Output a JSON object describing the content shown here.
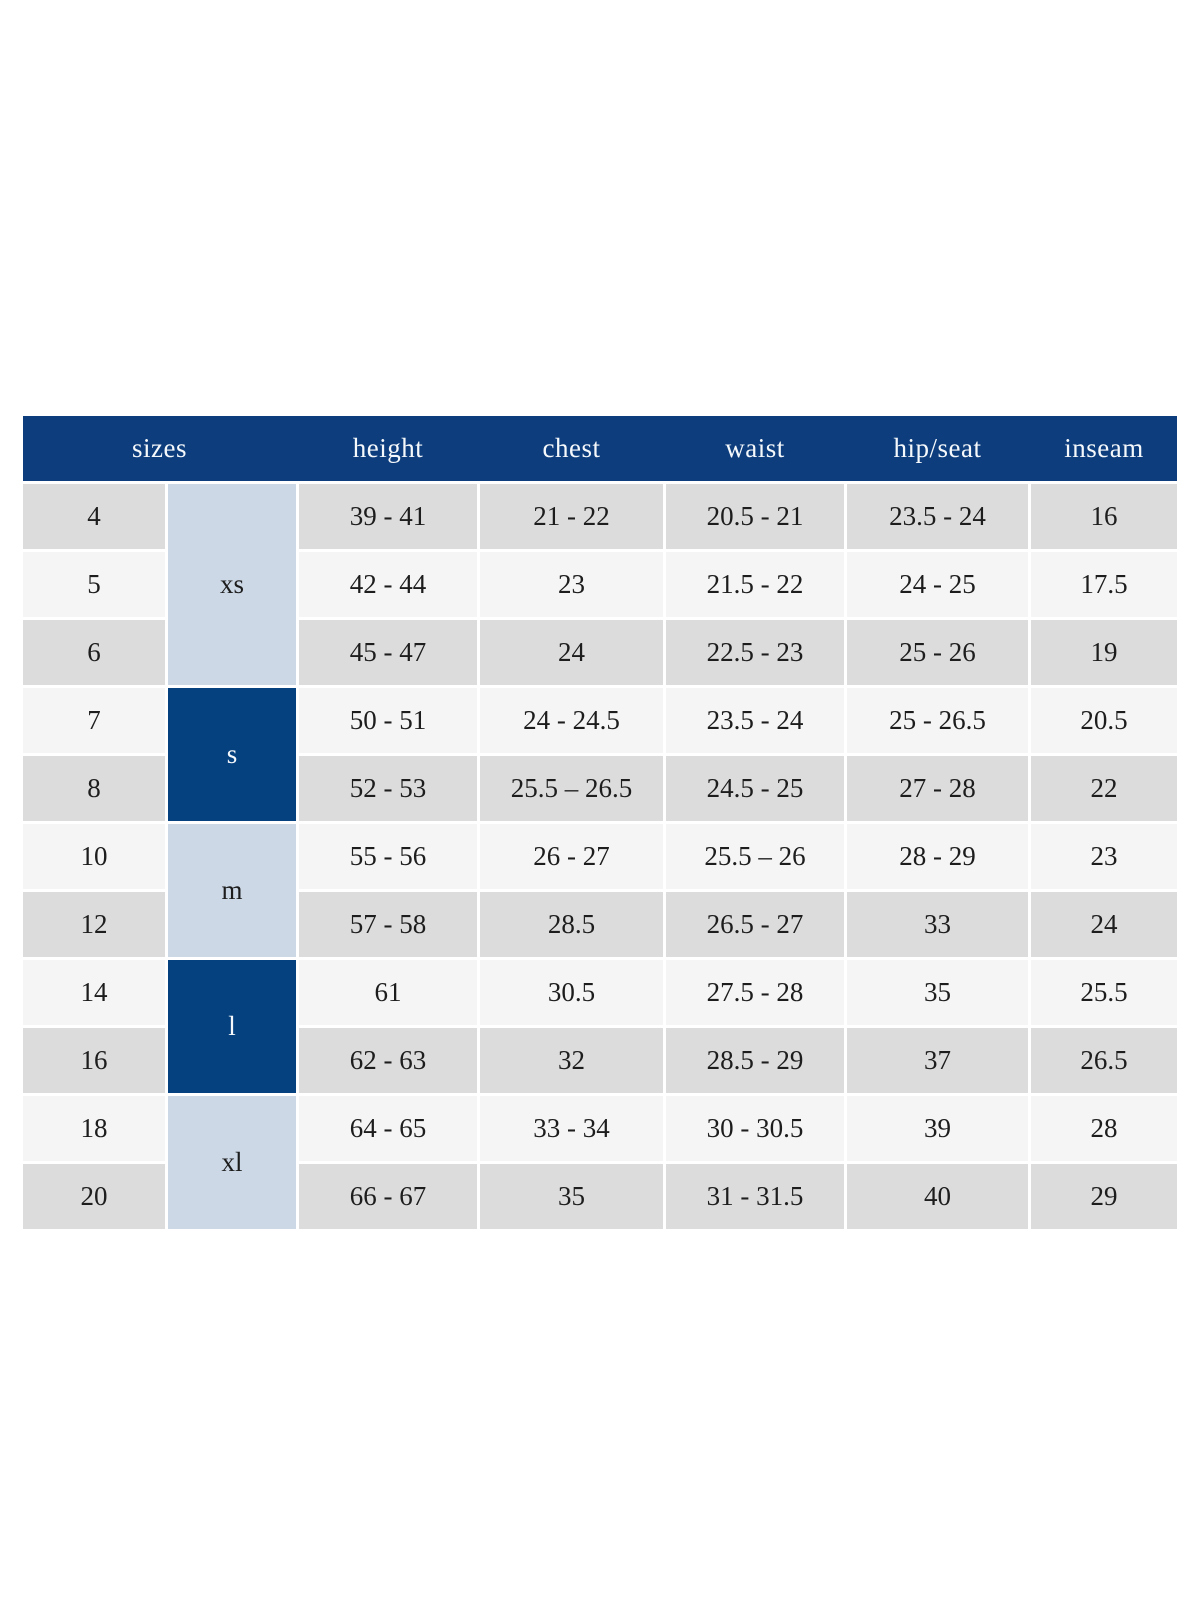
{
  "colors": {
    "header_bg": "#0d3d7c",
    "header_text": "#f6f9fc",
    "group_dark_bg": "#05407f",
    "group_light_bg": "#ccd8e6",
    "row_gray_bg": "#dcdcdc",
    "row_light_bg": "#f5f5f5",
    "cell_text": "#1d1d1d",
    "page_bg": "#ffffff"
  },
  "chart_data": {
    "type": "table",
    "columns": [
      "sizes",
      "height",
      "chest",
      "waist",
      "hip/seat",
      "inseam"
    ],
    "size_groups": [
      {
        "label": "xs",
        "rows": 3,
        "style": "light"
      },
      {
        "label": "s",
        "rows": 2,
        "style": "dark"
      },
      {
        "label": "m",
        "rows": 2,
        "style": "light"
      },
      {
        "label": "l",
        "rows": 2,
        "style": "dark"
      },
      {
        "label": "xl",
        "rows": 2,
        "style": "light"
      }
    ],
    "rows": [
      {
        "size": "4",
        "height": "39 - 41",
        "chest": "21 - 22",
        "waist": "20.5 - 21",
        "hip_seat": "23.5 - 24",
        "inseam": "16"
      },
      {
        "size": "5",
        "height": "42 - 44",
        "chest": "23",
        "waist": "21.5 - 22",
        "hip_seat": "24 - 25",
        "inseam": "17.5"
      },
      {
        "size": "6",
        "height": "45 - 47",
        "chest": "24",
        "waist": "22.5 - 23",
        "hip_seat": "25 - 26",
        "inseam": "19"
      },
      {
        "size": "7",
        "height": "50 - 51",
        "chest": "24 - 24.5",
        "waist": "23.5 - 24",
        "hip_seat": "25 - 26.5",
        "inseam": "20.5"
      },
      {
        "size": "8",
        "height": "52 - 53",
        "chest": "25.5 – 26.5",
        "waist": "24.5 - 25",
        "hip_seat": "27 - 28",
        "inseam": "22"
      },
      {
        "size": "10",
        "height": "55 - 56",
        "chest": "26 - 27",
        "waist": "25.5 – 26",
        "hip_seat": "28 - 29",
        "inseam": "23"
      },
      {
        "size": "12",
        "height": "57 - 58",
        "chest": "28.5",
        "waist": "26.5 - 27",
        "hip_seat": "33",
        "inseam": "24"
      },
      {
        "size": "14",
        "height": "61",
        "chest": "30.5",
        "waist": "27.5 - 28",
        "hip_seat": "35",
        "inseam": "25.5"
      },
      {
        "size": "16",
        "height": "62 - 63",
        "chest": "32",
        "waist": "28.5 - 29",
        "hip_seat": "37",
        "inseam": "26.5"
      },
      {
        "size": "18",
        "height": "64 - 65",
        "chest": "33 - 34",
        "waist": "30 - 30.5",
        "hip_seat": "39",
        "inseam": "28"
      },
      {
        "size": "20",
        "height": "66 - 67",
        "chest": "35",
        "waist": "31 - 31.5",
        "hip_seat": "40",
        "inseam": "29"
      }
    ]
  }
}
